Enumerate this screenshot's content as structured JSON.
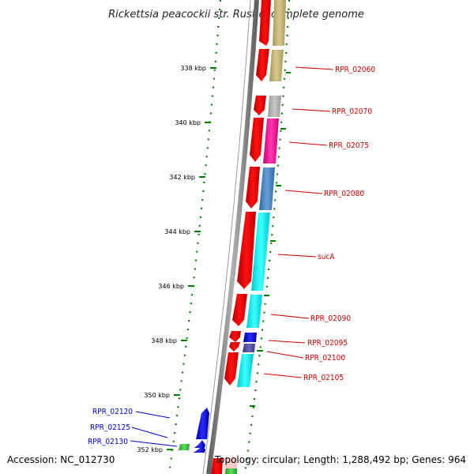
{
  "header": {
    "title": "Rickettsia peacockii str. Rustic, complete genome"
  },
  "footer": {
    "accession": "Accession: NC_012730",
    "summary": "Topology: circular; Length: 1,288,492 bp; Genes: 964"
  },
  "scale_ticks": [
    {
      "label": "338 kbp"
    },
    {
      "label": "340 kbp"
    },
    {
      "label": "342 kbp"
    },
    {
      "label": "344 kbp"
    },
    {
      "label": "346 kbp"
    },
    {
      "label": "348 kbp"
    },
    {
      "label": "350 kbp"
    },
    {
      "label": "352 kbp"
    }
  ],
  "gene_labels_right": [
    {
      "name": "RPR_02060"
    },
    {
      "name": "RPR_02070"
    },
    {
      "name": "RPR_02075"
    },
    {
      "name": "RPR_02080"
    },
    {
      "name": "sucA"
    },
    {
      "name": "RPR_02090"
    },
    {
      "name": "RPR_02095"
    },
    {
      "name": "RPR_02100"
    },
    {
      "name": "RPR_02105"
    }
  ],
  "gene_labels_left": [
    {
      "name": "RPR_02120"
    },
    {
      "name": "RPR_02125"
    },
    {
      "name": "RPR_02130"
    }
  ],
  "colors": {
    "forward_gene": "#ff0000",
    "reverse_gene": "#0000ff",
    "backbone": "#808080",
    "gc_dots": "#008000",
    "category_olive": "#c8b87a",
    "category_gray": "#b0b0b0",
    "category_pink": "#ff1aa3",
    "category_steel": "#4a86c0",
    "category_cyan": "#00f0f0",
    "category_navy": "#5050a0",
    "category_green": "#40c040"
  }
}
